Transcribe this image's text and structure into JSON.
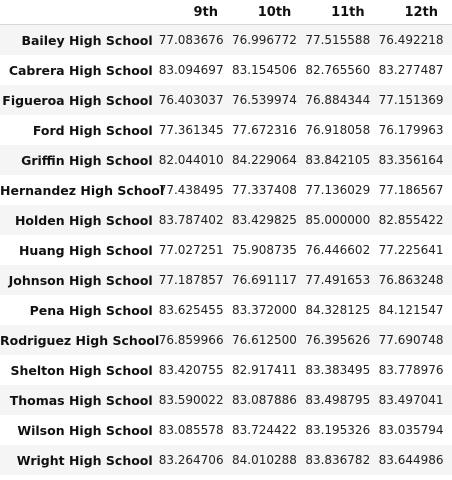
{
  "table": {
    "index_header": "",
    "columns": [
      "9th",
      "10th",
      "11th",
      "12th"
    ],
    "rows": [
      {
        "school": "Bailey High School",
        "values": [
          "77.083676",
          "76.996772",
          "77.515588",
          "76.492218"
        ]
      },
      {
        "school": "Cabrera High School",
        "values": [
          "83.094697",
          "83.154506",
          "82.765560",
          "83.277487"
        ]
      },
      {
        "school": "Figueroa High School",
        "values": [
          "76.403037",
          "76.539974",
          "76.884344",
          "77.151369"
        ]
      },
      {
        "school": "Ford High School",
        "values": [
          "77.361345",
          "77.672316",
          "76.918058",
          "76.179963"
        ]
      },
      {
        "school": "Griffin High School",
        "values": [
          "82.044010",
          "84.229064",
          "83.842105",
          "83.356164"
        ]
      },
      {
        "school": "Hernandez High School",
        "values": [
          "77.438495",
          "77.337408",
          "77.136029",
          "77.186567"
        ]
      },
      {
        "school": "Holden High School",
        "values": [
          "83.787402",
          "83.429825",
          "85.000000",
          "82.855422"
        ]
      },
      {
        "school": "Huang High School",
        "values": [
          "77.027251",
          "75.908735",
          "76.446602",
          "77.225641"
        ]
      },
      {
        "school": "Johnson High School",
        "values": [
          "77.187857",
          "76.691117",
          "77.491653",
          "76.863248"
        ]
      },
      {
        "school": "Pena High School",
        "values": [
          "83.625455",
          "83.372000",
          "84.328125",
          "84.121547"
        ]
      },
      {
        "school": "Rodriguez High School",
        "values": [
          "76.859966",
          "76.612500",
          "76.395626",
          "77.690748"
        ]
      },
      {
        "school": "Shelton High School",
        "values": [
          "83.420755",
          "82.917411",
          "83.383495",
          "83.778976"
        ]
      },
      {
        "school": "Thomas High School",
        "values": [
          "83.590022",
          "83.087886",
          "83.498795",
          "83.497041"
        ]
      },
      {
        "school": "Wilson High School",
        "values": [
          "83.085578",
          "83.724422",
          "83.195326",
          "83.035794"
        ]
      },
      {
        "school": "Wright High School",
        "values": [
          "83.264706",
          "84.010288",
          "83.836782",
          "83.644986"
        ]
      }
    ]
  }
}
